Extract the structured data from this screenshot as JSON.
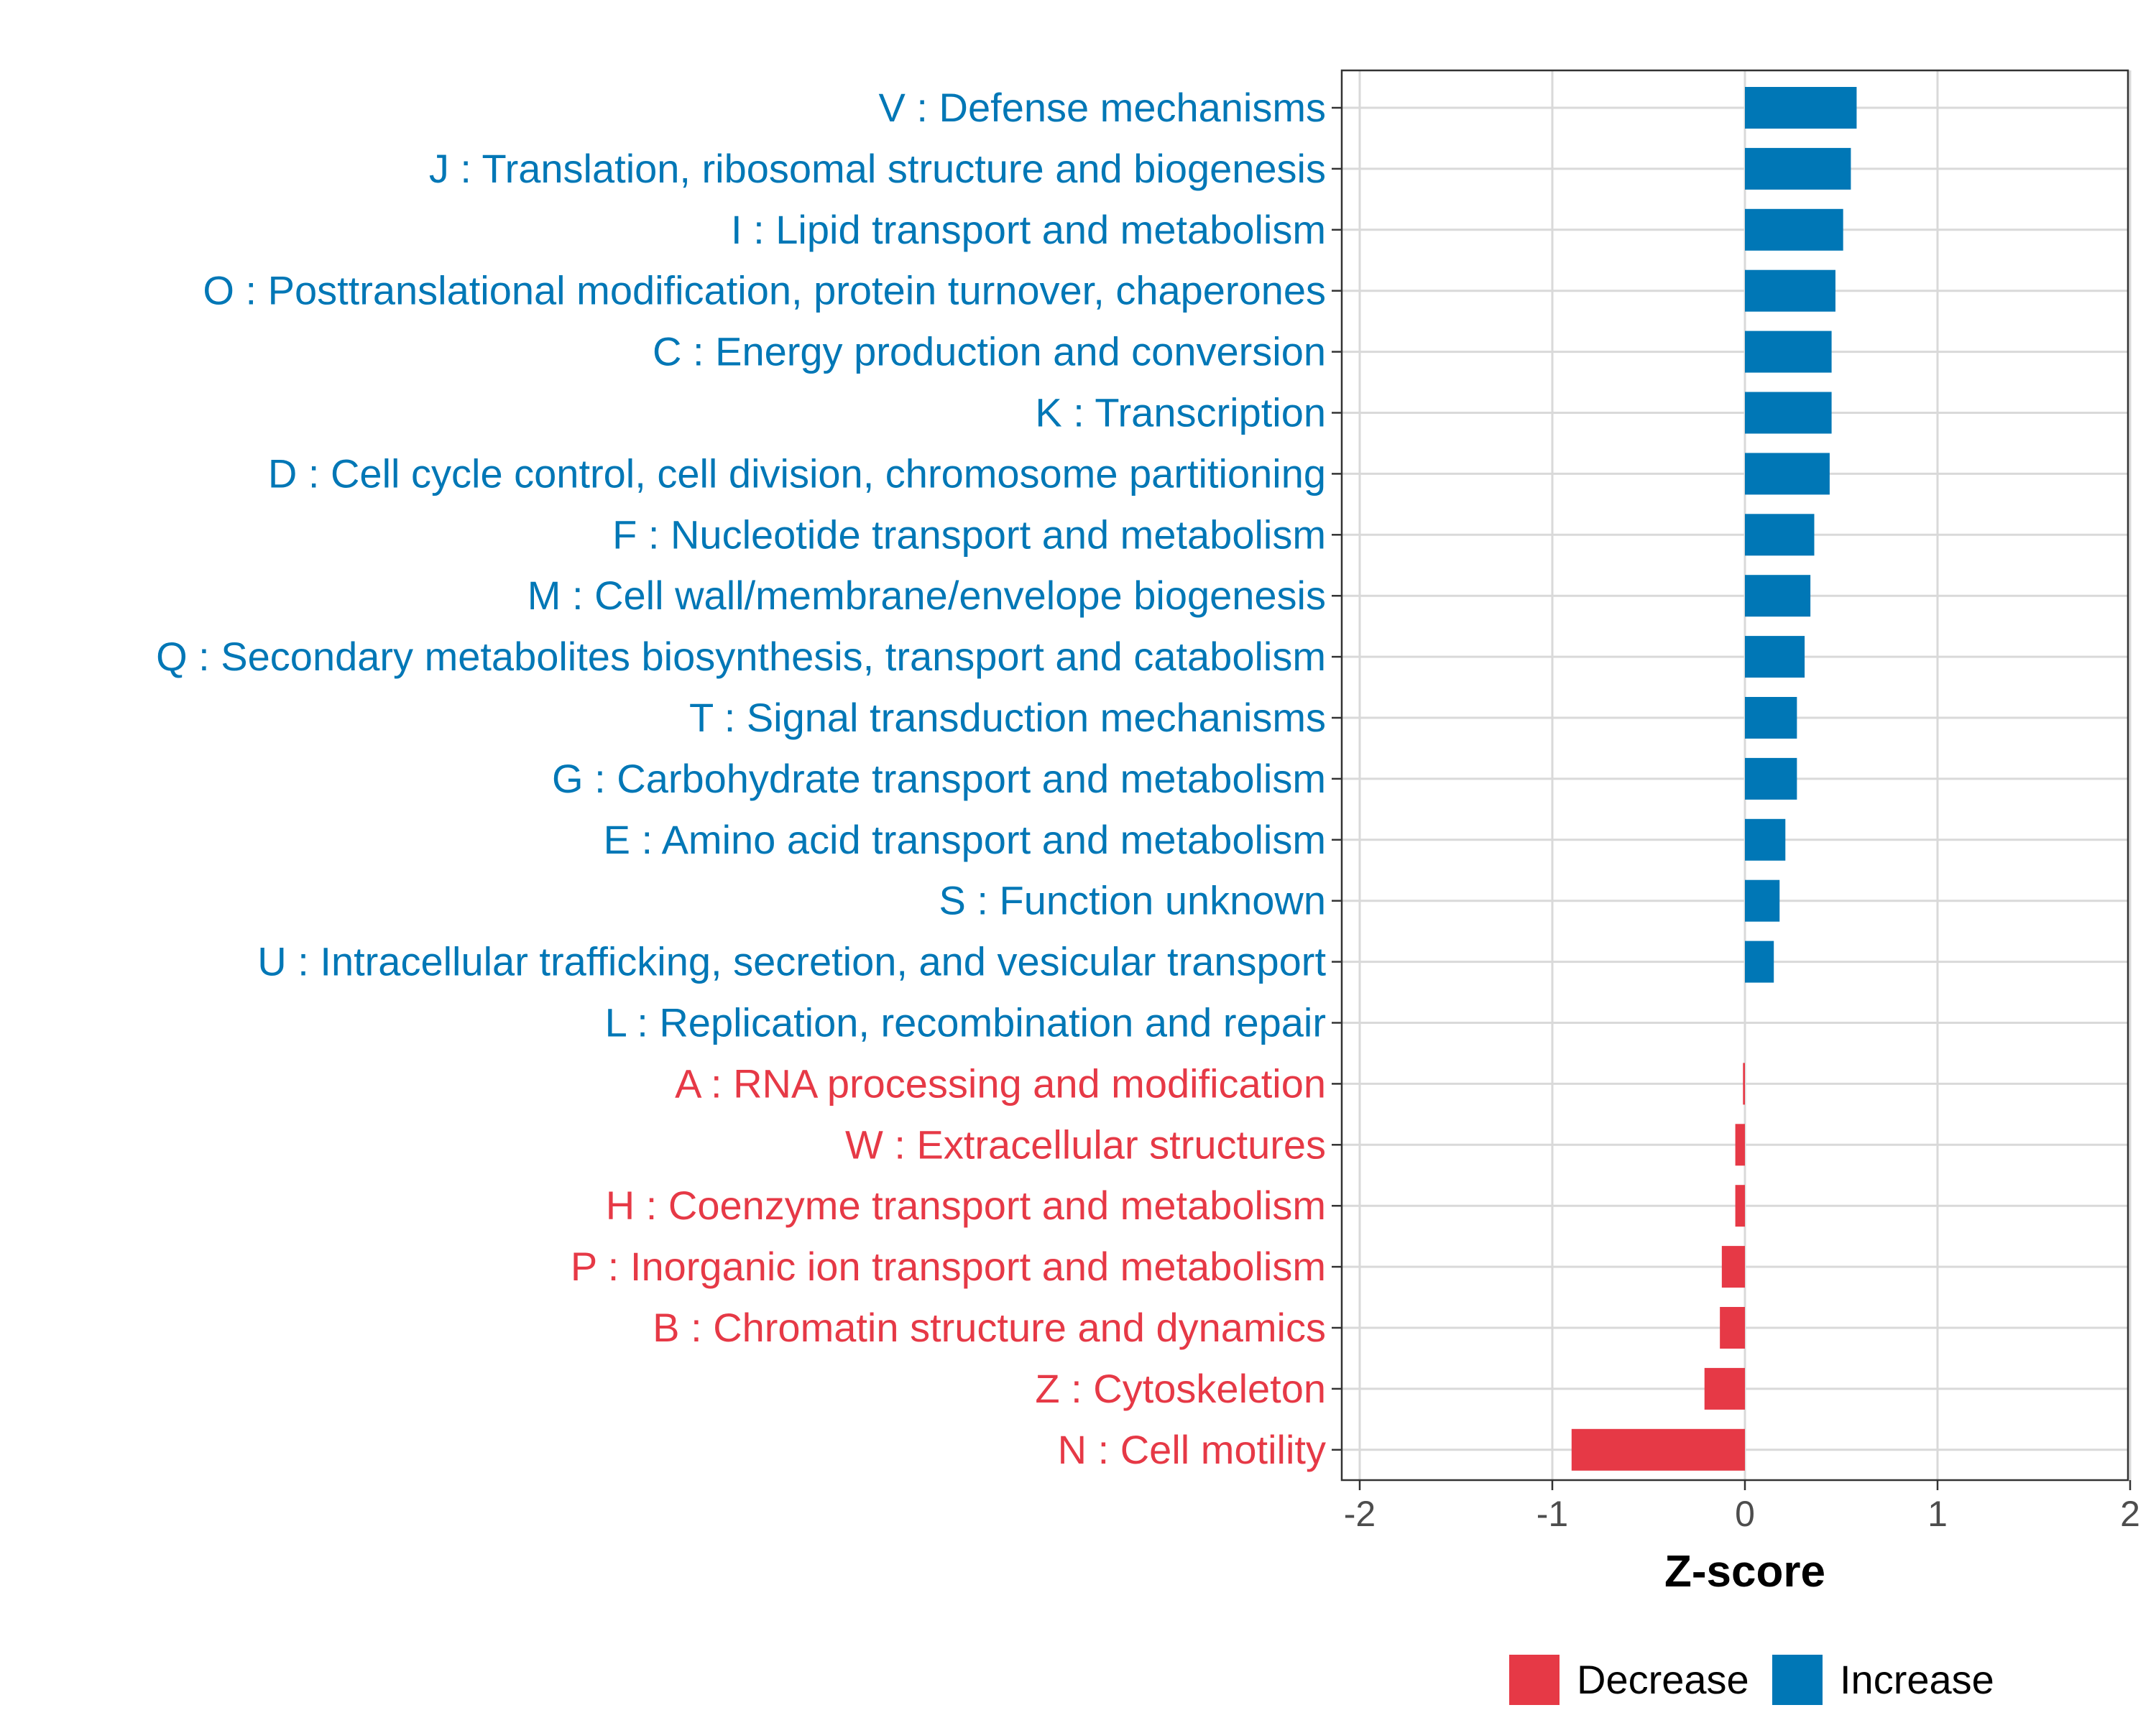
{
  "chart_data": {
    "type": "bar",
    "orientation": "horizontal",
    "xlabel": "Z-score",
    "ylabel": "",
    "xlim": [
      -2.1,
      2.1
    ],
    "xticks": [
      -2,
      -1,
      0,
      1,
      2
    ],
    "xtick_labels": [
      "-2",
      "-1",
      "0",
      "1",
      "2"
    ],
    "grid": true,
    "legend_position": "bottom",
    "legend": [
      {
        "name": "Decrease",
        "color": "#e63946"
      },
      {
        "name": "Increase",
        "color": "#0077b6"
      }
    ],
    "categories": [
      "V : Defense mechanisms",
      "J : Translation, ribosomal structure and biogenesis",
      "I : Lipid transport and metabolism",
      "O : Posttranslational modification, protein turnover, chaperones",
      "C : Energy production and conversion",
      "K : Transcription",
      "D : Cell cycle control, cell division, chromosome partitioning",
      "F : Nucleotide transport and metabolism",
      "M : Cell wall/membrane/envelope biogenesis",
      "Q : Secondary metabolites biosynthesis, transport and catabolism",
      "T : Signal transduction mechanisms",
      "G : Carbohydrate transport and metabolism",
      "E : Amino acid transport and metabolism",
      "S : Function unknown",
      "U : Intracellular trafficking, secretion, and vesicular transport",
      "L : Replication, recombination and repair",
      "A : RNA processing and modification",
      "W : Extracellular structures",
      "H : Coenzyme transport and metabolism",
      "P : Inorganic ion transport and metabolism",
      "B : Chromatin structure and dynamics",
      "Z : Cytoskeleton",
      "N : Cell motility"
    ],
    "values": [
      0.58,
      0.55,
      0.51,
      0.47,
      0.45,
      0.45,
      0.44,
      0.36,
      0.34,
      0.31,
      0.27,
      0.27,
      0.21,
      0.18,
      0.15,
      0.0,
      -0.01,
      -0.05,
      -0.05,
      -0.12,
      -0.13,
      -0.21,
      -0.9
    ],
    "groups": [
      "Increase",
      "Increase",
      "Increase",
      "Increase",
      "Increase",
      "Increase",
      "Increase",
      "Increase",
      "Increase",
      "Increase",
      "Increase",
      "Increase",
      "Increase",
      "Increase",
      "Increase",
      "Increase",
      "Decrease",
      "Decrease",
      "Decrease",
      "Decrease",
      "Decrease",
      "Decrease",
      "Decrease"
    ]
  },
  "colors": {
    "increase": "#0077b6",
    "decrease": "#e63946",
    "grid": "#d9d9d9",
    "axis": "#333333",
    "tick_text": "#4d4d4d"
  }
}
